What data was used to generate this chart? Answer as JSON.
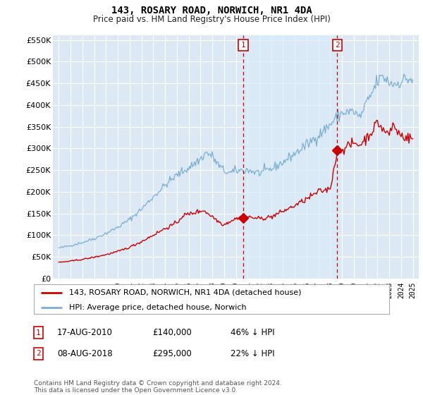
{
  "title": "143, ROSARY ROAD, NORWICH, NR1 4DA",
  "subtitle": "Price paid vs. HM Land Registry's House Price Index (HPI)",
  "ylim": [
    0,
    560000
  ],
  "yticks": [
    0,
    50000,
    100000,
    150000,
    200000,
    250000,
    300000,
    350000,
    400000,
    450000,
    500000,
    550000
  ],
  "bg_color": "#dce9f5",
  "grid_color": "white",
  "marker1_x": 2010.625,
  "marker1_y": 140000,
  "marker2_x": 2018.6,
  "marker2_y": 295000,
  "vline1_x": 2010.625,
  "vline2_x": 2018.6,
  "legend_line1": "143, ROSARY ROAD, NORWICH, NR1 4DA (detached house)",
  "legend_line2": "HPI: Average price, detached house, Norwich",
  "footer": "Contains HM Land Registry data © Crown copyright and database right 2024.\nThis data is licensed under the Open Government Licence v3.0.",
  "red_color": "#cc0000",
  "blue_color": "#7bafd4",
  "shade_color": "#daeaf7",
  "xlim_left": 1994.5,
  "xlim_right": 2025.5
}
